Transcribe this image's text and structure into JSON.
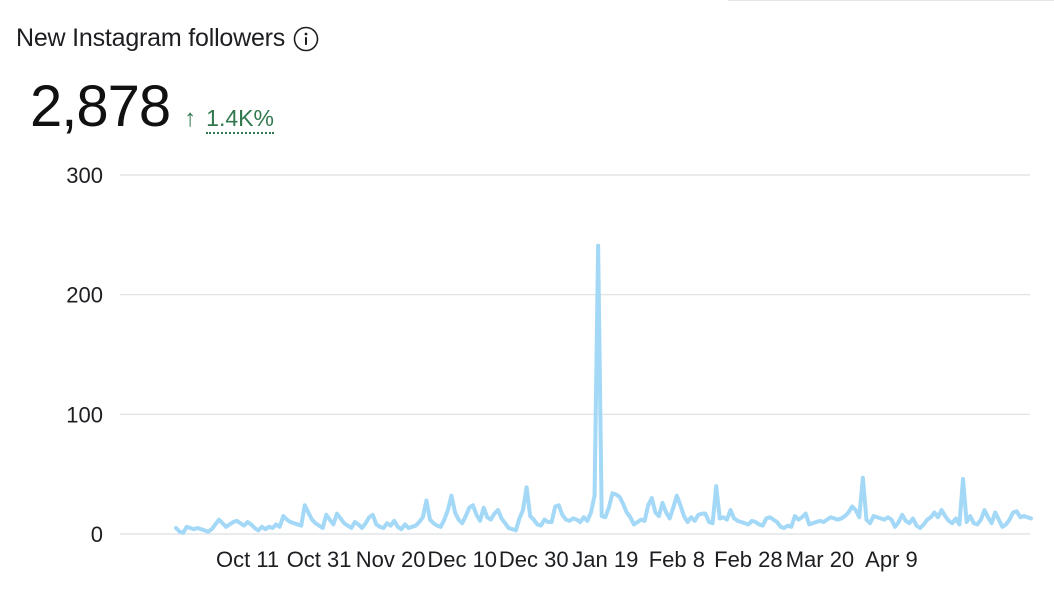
{
  "widget": {
    "title": "New Instagram followers",
    "info_icon": "info-circle-icon",
    "value": "2,878",
    "change_icon": "arrow-up-icon",
    "change_arrow": "↑",
    "change_text": "1.4K%",
    "change_color": "#31784f"
  },
  "chart_data": {
    "type": "line",
    "title": "",
    "xlabel": "",
    "ylabel": "",
    "ylim": [
      0,
      300
    ],
    "y_ticks": [
      0,
      100,
      200,
      300
    ],
    "grid": true,
    "legend": "none",
    "line_color": "#a3d8f7",
    "x_start": "2023-09-21",
    "x_tick_labels": [
      "Oct 11",
      "Oct 31",
      "Nov 20",
      "Dec 10",
      "Dec 30",
      "Jan 19",
      "Feb 8",
      "Feb 28",
      "Mar 20",
      "Apr 9"
    ],
    "series": [
      {
        "name": "",
        "values": [
          5,
          2,
          1,
          6,
          5,
          4,
          5,
          4,
          3,
          2,
          4,
          8,
          12,
          9,
          6,
          8,
          10,
          11,
          9,
          7,
          10,
          8,
          5,
          3,
          6,
          4,
          6,
          5,
          8,
          6,
          15,
          12,
          10,
          9,
          8,
          7,
          24,
          18,
          12,
          9,
          7,
          5,
          16,
          12,
          8,
          17,
          13,
          9,
          7,
          5,
          10,
          8,
          5,
          9,
          14,
          16,
          8,
          6,
          5,
          9,
          7,
          11,
          6,
          4,
          8,
          5,
          6,
          7,
          10,
          14,
          28,
          12,
          9,
          7,
          6,
          12,
          20,
          32,
          18,
          12,
          9,
          15,
          22,
          24,
          16,
          11,
          22,
          14,
          12,
          17,
          20,
          13,
          9,
          5,
          4,
          3,
          13,
          20,
          39,
          15,
          12,
          8,
          7,
          12,
          10,
          10,
          23,
          24,
          16,
          12,
          11,
          13,
          12,
          10,
          14,
          11,
          18,
          32,
          241,
          15,
          14,
          22,
          34,
          33,
          31,
          25,
          18,
          14,
          8,
          10,
          12,
          11,
          24,
          30,
          18,
          15,
          26,
          18,
          13,
          22,
          32,
          24,
          15,
          10,
          14,
          11,
          16,
          17,
          17,
          10,
          9,
          40,
          13,
          14,
          12,
          20,
          13,
          11,
          10,
          9,
          8,
          11,
          10,
          8,
          7,
          13,
          14,
          12,
          10,
          6,
          5,
          7,
          6,
          15,
          12,
          14,
          17,
          8,
          9,
          10,
          11,
          10,
          12,
          14,
          13,
          12,
          13,
          15,
          18,
          23,
          20,
          14,
          47,
          12,
          9,
          15,
          14,
          13,
          12,
          14,
          12,
          6,
          10,
          16,
          11,
          9,
          13,
          7,
          5,
          8,
          12,
          14,
          18,
          14,
          20,
          15,
          11,
          9,
          13,
          8,
          46,
          10,
          15,
          9,
          8,
          12,
          20,
          14,
          9,
          18,
          12,
          6,
          8,
          12,
          18,
          19,
          14,
          15,
          14,
          13
        ]
      }
    ]
  }
}
